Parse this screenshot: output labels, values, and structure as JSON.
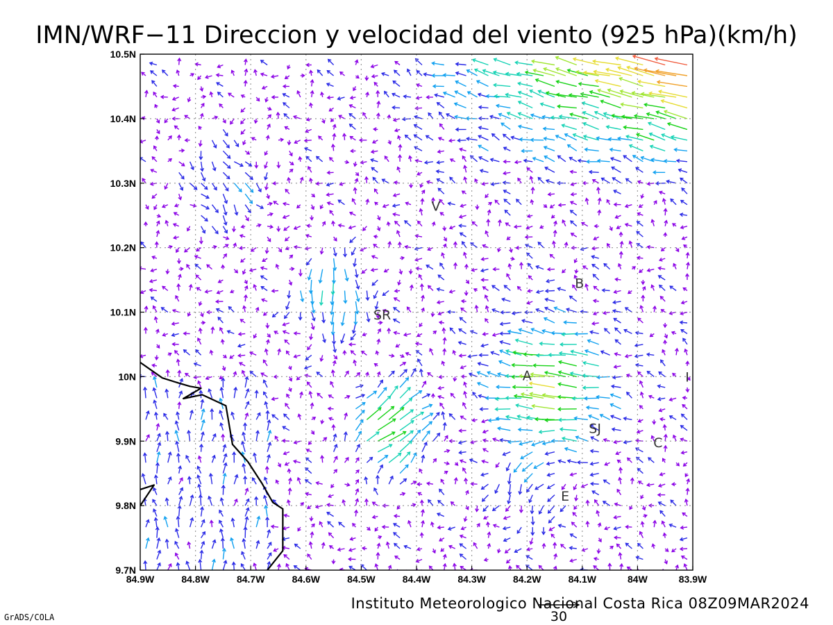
{
  "title": "IMN/WRF−11 Direccion y velocidad del viento (925 hPa)(km/h)",
  "footer": "Instituto Meteorologico Nacional Costa Rica 08Z09MAR2024",
  "software_tag": "GrADS/COLA",
  "reference_vector": {
    "value": 30,
    "label": "30"
  },
  "map": {
    "lon_range": [
      -84.9,
      -83.9
    ],
    "lat_range": [
      9.7,
      10.5
    ],
    "grid": true,
    "lon_ticks": [
      {
        "value": -84.9,
        "label": "84.9W"
      },
      {
        "value": -84.8,
        "label": "84.8W"
      },
      {
        "value": -84.7,
        "label": "84.7W"
      },
      {
        "value": -84.6,
        "label": "84.6W"
      },
      {
        "value": -84.5,
        "label": "84.5W"
      },
      {
        "value": -84.4,
        "label": "84.4W"
      },
      {
        "value": -84.3,
        "label": "84.3W"
      },
      {
        "value": -84.2,
        "label": "84.2W"
      },
      {
        "value": -84.1,
        "label": "84.1W"
      },
      {
        "value": -84.0,
        "label": "84W"
      },
      {
        "value": -83.9,
        "label": "83.9W"
      }
    ],
    "lat_ticks": [
      {
        "value": 10.5,
        "label": "10.5N"
      },
      {
        "value": 10.4,
        "label": "10.4N"
      },
      {
        "value": 10.3,
        "label": "10.3N"
      },
      {
        "value": 10.2,
        "label": "10.2N"
      },
      {
        "value": 10.1,
        "label": "10.1N"
      },
      {
        "value": 10.0,
        "label": "10N"
      },
      {
        "value": 9.9,
        "label": "9.9N"
      },
      {
        "value": 9.8,
        "label": "9.8N"
      },
      {
        "value": 9.7,
        "label": "9.7N"
      }
    ],
    "cities": [
      {
        "label": "V",
        "lon": -84.365,
        "lat": 10.265
      },
      {
        "label": "B",
        "lon": -84.105,
        "lat": 10.145
      },
      {
        "label": "SR",
        "lon": -84.462,
        "lat": 10.096
      },
      {
        "label": "A",
        "lon": -84.2,
        "lat": 10.002
      },
      {
        "label": "I",
        "lon": -83.91,
        "lat": 10.0
      },
      {
        "label": "SJ",
        "lon": -84.077,
        "lat": 9.92
      },
      {
        "label": "C",
        "lon": -83.963,
        "lat": 9.898
      },
      {
        "label": "E",
        "lon": -84.131,
        "lat": 9.815
      }
    ],
    "coastlines": [
      [
        [
          -84.9,
          10.022
        ],
        [
          -84.86,
          9.998
        ],
        [
          -84.83,
          9.99
        ],
        [
          -84.81,
          9.985
        ],
        [
          -84.79,
          9.982
        ],
        [
          -84.822,
          9.966
        ],
        [
          -84.788,
          9.972
        ],
        [
          -84.745,
          9.955
        ],
        [
          -84.74,
          9.93
        ],
        [
          -84.733,
          9.895
        ],
        [
          -84.705,
          9.868
        ],
        [
          -84.68,
          9.835
        ],
        [
          -84.66,
          9.805
        ],
        [
          -84.642,
          9.795
        ],
        [
          -84.642,
          9.73
        ],
        [
          -84.67,
          9.7
        ]
      ],
      [
        [
          -84.9,
          9.8
        ],
        [
          -84.875,
          9.832
        ],
        [
          -84.9,
          9.825
        ]
      ]
    ],
    "speed_colors": [
      "#8a00e6",
      "#2828e6",
      "#0fa0f0",
      "#14d2b4",
      "#14d214",
      "#a0e632",
      "#e6dc32",
      "#f0a028",
      "#f05a3c",
      "#ee1e8c"
    ],
    "wind_grid": {
      "lon_start": -84.89,
      "lon_step": 0.02,
      "cols": 50,
      "lat_start": 9.7,
      "lat_step": 0.0166667,
      "rows": 49,
      "stride": 2
    }
  }
}
